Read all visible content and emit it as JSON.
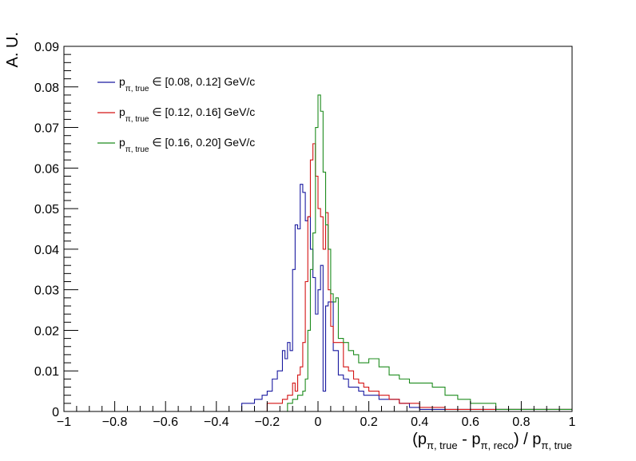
{
  "chart_data": {
    "type": "histogram",
    "title": "",
    "xlabel": {
      "parts": [
        {
          "text": "(p",
          "sub": false
        },
        {
          "text": "π, true",
          "sub": true
        },
        {
          "text": " - p",
          "sub": false
        },
        {
          "text": "π, reco",
          "sub": true
        },
        {
          "text": ") / p",
          "sub": false
        },
        {
          "text": "π, true",
          "sub": true
        }
      ]
    },
    "ylabel": "A. U.",
    "xlim": [
      -1,
      1
    ],
    "ylim": [
      0,
      0.09
    ],
    "x_ticks": [
      -1,
      -0.8,
      -0.6,
      -0.4,
      -0.2,
      0,
      0.2,
      0.4,
      0.6,
      0.8,
      1
    ],
    "x_tick_labels": [
      "−1",
      "−0.8",
      "−0.6",
      "−0.4",
      "−0.2",
      "0",
      "0.2",
      "0.4",
      "0.6",
      "0.8",
      "1"
    ],
    "y_ticks": [
      0,
      0.01,
      0.02,
      0.03,
      0.04,
      0.05,
      0.06,
      0.07,
      0.08,
      0.09
    ],
    "y_tick_labels": [
      "0",
      "0.01",
      "0.02",
      "0.03",
      "0.04",
      "0.05",
      "0.06",
      "0.07",
      "0.08",
      "0.09"
    ],
    "grid": false,
    "legend_position": "top-left",
    "series": [
      {
        "name": "p_π, true ∈ [0.08, 0.12] GeV/c",
        "name_main": "p",
        "name_sub": "π, true",
        "name_rest": " ∈ [0.08, 0.12] GeV/c",
        "color": "#1a1aa0",
        "bin_edges": [
          -1.0,
          -0.3,
          -0.25,
          -0.22,
          -0.2,
          -0.18,
          -0.16,
          -0.14,
          -0.13,
          -0.12,
          -0.11,
          -0.1,
          -0.09,
          -0.08,
          -0.07,
          -0.06,
          -0.05,
          -0.04,
          -0.03,
          -0.02,
          -0.01,
          0.0,
          0.01,
          0.02,
          0.03,
          0.04,
          0.06,
          0.08,
          0.1,
          0.12,
          0.14,
          0.16,
          0.18,
          0.2,
          0.24,
          0.28,
          0.32,
          0.36,
          0.4,
          1.0
        ],
        "values": [
          0,
          0.002,
          0.003,
          0.004,
          0.005,
          0.008,
          0.01,
          0.015,
          0.013,
          0.017,
          0.015,
          0.035,
          0.046,
          0.045,
          0.056,
          0.054,
          0.047,
          0.048,
          0.04,
          0.033,
          0.024,
          0.03,
          0.036,
          0.005,
          0.026,
          0.027,
          0.015,
          0.009,
          0.008,
          0.006,
          0.006,
          0.005,
          0.004,
          0.004,
          0.003,
          0.003,
          0.002,
          0.001,
          0.0005
        ]
      },
      {
        "name": "p_π, true ∈ [0.12, 0.16] GeV/c",
        "name_main": "p",
        "name_sub": "π, true",
        "name_rest": " ∈ [0.12, 0.16] GeV/c",
        "color": "#d41414",
        "bin_edges": [
          -1.0,
          -0.2,
          -0.16,
          -0.14,
          -0.12,
          -0.1,
          -0.09,
          -0.08,
          -0.07,
          -0.06,
          -0.05,
          -0.04,
          -0.03,
          -0.02,
          -0.01,
          0.0,
          0.01,
          0.02,
          0.03,
          0.04,
          0.05,
          0.06,
          0.08,
          0.1,
          0.12,
          0.14,
          0.16,
          0.18,
          0.2,
          0.24,
          0.28,
          0.32,
          0.36,
          0.4,
          0.5,
          1.0
        ],
        "values": [
          0,
          0.002,
          0.002,
          0.003,
          0.004,
          0.007,
          0.005,
          0.009,
          0.011,
          0.017,
          0.032,
          0.048,
          0.062,
          0.066,
          0.058,
          0.05,
          0.048,
          0.04,
          0.049,
          0.03,
          0.021,
          0.017,
          0.017,
          0.011,
          0.01,
          0.008,
          0.007,
          0.006,
          0.005,
          0.004,
          0.003,
          0.002,
          0.002,
          0.001,
          0.0005
        ]
      },
      {
        "name": "p_π, true ∈ [0.16, 0.20] GeV/c",
        "name_main": "p",
        "name_sub": "π, true",
        "name_rest": " ∈ [0.16, 0.20] GeV/c",
        "color": "#1e8c1e",
        "bin_edges": [
          -1.0,
          -0.12,
          -0.1,
          -0.08,
          -0.06,
          -0.05,
          -0.04,
          -0.03,
          -0.02,
          -0.01,
          0.0,
          0.01,
          0.02,
          0.03,
          0.04,
          0.05,
          0.06,
          0.07,
          0.08,
          0.1,
          0.12,
          0.14,
          0.16,
          0.18,
          0.2,
          0.24,
          0.28,
          0.32,
          0.36,
          0.4,
          0.45,
          0.5,
          0.55,
          0.6,
          0.65,
          0.7,
          1.0
        ],
        "values": [
          0,
          0.002,
          0.003,
          0.004,
          0.005,
          0.008,
          0.02,
          0.035,
          0.044,
          0.07,
          0.078,
          0.074,
          0.059,
          0.046,
          0.04,
          0.029,
          0.027,
          0.028,
          0.018,
          0.017,
          0.015,
          0.014,
          0.012,
          0.012,
          0.013,
          0.011,
          0.009,
          0.008,
          0.007,
          0.007,
          0.006,
          0.004,
          0.003,
          0.002,
          0.002,
          0.0005
        ]
      }
    ]
  }
}
